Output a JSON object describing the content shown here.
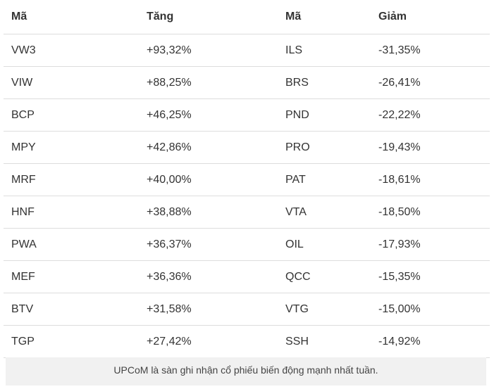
{
  "table": {
    "header": [
      "Mã",
      "Tăng",
      "Mã",
      "Giảm"
    ],
    "rows": [
      [
        "VW3",
        "+93,32%",
        "ILS",
        "-31,35%"
      ],
      [
        "VIW",
        "+88,25%",
        "BRS",
        "-26,41%"
      ],
      [
        "BCP",
        "+46,25%",
        "PND",
        "-22,22%"
      ],
      [
        "MPY",
        "+42,86%",
        "PRO",
        "-19,43%"
      ],
      [
        "MRF",
        "+40,00%",
        "PAT",
        "-18,61%"
      ],
      [
        "HNF",
        "+38,88%",
        "VTA",
        "-18,50%"
      ],
      [
        "PWA",
        "+36,37%",
        "OIL",
        "-17,93%"
      ],
      [
        "MEF",
        "+36,36%",
        "QCC",
        "-15,35%"
      ],
      [
        "BTV",
        "+31,58%",
        "VTG",
        "-15,00%"
      ],
      [
        "TGP",
        "+27,42%",
        "SSH",
        "-14,92%"
      ]
    ]
  },
  "caption": "UPCoM là sàn ghi nhận cổ phiếu biến động mạnh nhất tuần."
}
